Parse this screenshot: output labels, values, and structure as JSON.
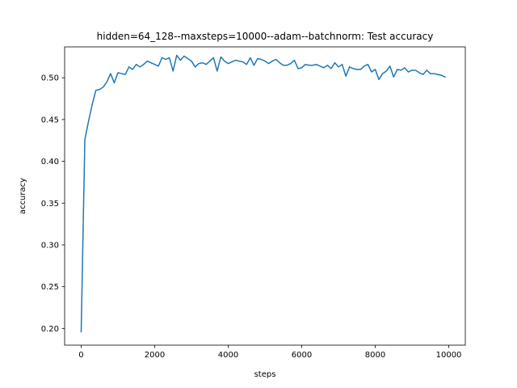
{
  "chart_data": {
    "type": "line",
    "title": "hidden=64_128--maxsteps=10000--adam--batchnorm: Test accuracy",
    "xlabel": "steps",
    "ylabel": "accuracy",
    "xlim": [
      -450,
      10450
    ],
    "ylim": [
      0.18,
      0.537
    ],
    "xticks": [
      0,
      2000,
      4000,
      6000,
      8000,
      10000
    ],
    "yticks": [
      0.2,
      0.25,
      0.3,
      0.35,
      0.4,
      0.45,
      0.5
    ],
    "xtick_labels": [
      "0",
      "2000",
      "4000",
      "6000",
      "8000",
      "10000"
    ],
    "ytick_labels": [
      "0.20",
      "0.25",
      "0.30",
      "0.35",
      "0.40",
      "0.45",
      "0.50"
    ],
    "grid": false,
    "legend": "none",
    "series": [
      {
        "color": "#1f77b4",
        "x": [
          0,
          100,
          200,
          300,
          400,
          500,
          600,
          700,
          800,
          900,
          1000,
          1100,
          1200,
          1300,
          1400,
          1500,
          1600,
          1700,
          1800,
          1900,
          2000,
          2100,
          2200,
          2300,
          2400,
          2500,
          2600,
          2700,
          2800,
          2900,
          3000,
          3100,
          3200,
          3300,
          3400,
          3500,
          3600,
          3700,
          3800,
          3900,
          4000,
          4100,
          4200,
          4300,
          4400,
          4500,
          4600,
          4700,
          4800,
          4900,
          5000,
          5100,
          5200,
          5300,
          5400,
          5500,
          5600,
          5700,
          5800,
          5900,
          6000,
          6100,
          6200,
          6300,
          6400,
          6500,
          6600,
          6700,
          6800,
          6900,
          7000,
          7100,
          7200,
          7300,
          7400,
          7500,
          7600,
          7700,
          7800,
          7900,
          8000,
          8100,
          8200,
          8300,
          8400,
          8500,
          8600,
          8700,
          8800,
          8900,
          9000,
          9100,
          9200,
          9300,
          9400,
          9500,
          9600,
          9700,
          9800,
          9900
        ],
        "y": [
          0.196,
          0.426,
          0.448,
          0.468,
          0.485,
          0.486,
          0.489,
          0.495,
          0.505,
          0.494,
          0.506,
          0.505,
          0.504,
          0.513,
          0.51,
          0.516,
          0.513,
          0.516,
          0.52,
          0.518,
          0.516,
          0.514,
          0.524,
          0.522,
          0.524,
          0.508,
          0.527,
          0.521,
          0.526,
          0.523,
          0.52,
          0.513,
          0.517,
          0.518,
          0.516,
          0.52,
          0.524,
          0.508,
          0.525,
          0.52,
          0.517,
          0.519,
          0.521,
          0.52,
          0.519,
          0.516,
          0.524,
          0.515,
          0.523,
          0.522,
          0.52,
          0.517,
          0.52,
          0.522,
          0.518,
          0.515,
          0.515,
          0.517,
          0.521,
          0.511,
          0.512,
          0.516,
          0.515,
          0.515,
          0.516,
          0.514,
          0.512,
          0.515,
          0.511,
          0.518,
          0.513,
          0.516,
          0.502,
          0.513,
          0.511,
          0.51,
          0.51,
          0.514,
          0.516,
          0.507,
          0.51,
          0.498,
          0.505,
          0.508,
          0.514,
          0.501,
          0.51,
          0.509,
          0.512,
          0.507,
          0.509,
          0.509,
          0.506,
          0.504,
          0.509,
          0.505,
          0.505,
          0.504,
          0.503,
          0.501
        ]
      }
    ]
  }
}
